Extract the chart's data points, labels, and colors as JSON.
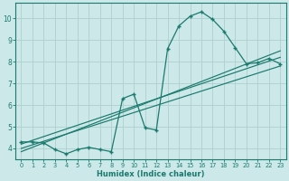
{
  "title": "",
  "xlabel": "Humidex (Indice chaleur)",
  "ylabel": "",
  "background_color": "#cce8e8",
  "line_color": "#1a7a6e",
  "grid_color": "#afd0d0",
  "xlim": [
    -0.5,
    23.5
  ],
  "ylim": [
    3.5,
    10.7
  ],
  "xticks": [
    0,
    1,
    2,
    3,
    4,
    5,
    6,
    7,
    8,
    9,
    10,
    11,
    12,
    13,
    14,
    15,
    16,
    17,
    18,
    19,
    20,
    21,
    22,
    23
  ],
  "yticks": [
    4,
    5,
    6,
    7,
    8,
    9,
    10
  ],
  "series1_x": [
    0,
    1,
    2,
    3,
    4,
    5,
    6,
    7,
    8,
    9,
    10,
    11,
    12,
    13,
    14,
    15,
    16,
    17,
    18,
    19,
    20,
    21,
    22,
    23
  ],
  "series1_y": [
    4.3,
    4.3,
    4.25,
    3.95,
    3.75,
    3.95,
    4.05,
    3.95,
    3.85,
    6.3,
    6.5,
    4.95,
    4.85,
    8.6,
    9.65,
    10.1,
    10.3,
    9.95,
    9.4,
    8.65,
    7.9,
    7.95,
    8.15,
    7.9
  ],
  "series2_x": [
    0,
    23
  ],
  "series2_y": [
    4.2,
    8.2
  ],
  "series3_x": [
    0,
    23
  ],
  "series3_y": [
    4.0,
    7.8
  ],
  "series4_x": [
    0,
    23
  ],
  "series4_y": [
    3.85,
    8.5
  ]
}
